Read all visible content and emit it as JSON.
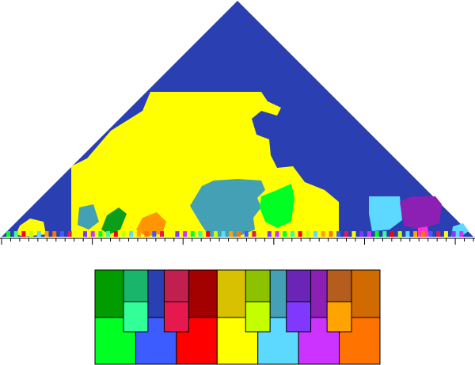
{
  "keyscape": {
    "background_color": "#2a3fb2",
    "tonic_color": "#ffff00",
    "axis_tick_count": 52,
    "regions": [
      {
        "name": "yellow-region",
        "color": "#ffff00"
      },
      {
        "name": "teal-region",
        "color": "#44a0b4"
      },
      {
        "name": "green-region",
        "color": "#00ff22"
      },
      {
        "name": "cyan-region",
        "color": "#5dd8ff"
      },
      {
        "name": "purple-region",
        "color": "#8c1fb4"
      },
      {
        "name": "orange-region",
        "color": "#ff9500"
      },
      {
        "name": "darkgreen-region",
        "color": "#0a9e1a"
      },
      {
        "name": "magenta-region",
        "color": "#ff33cc"
      }
    ]
  },
  "legend": {
    "upper_white": [
      "#009c00",
      "#2a3fb2",
      "#a30000",
      "#d8c100",
      "#44a0b4",
      "#8c1fb4",
      "#d16a00"
    ],
    "upper_black": [
      "#18b56b",
      "#c11f4f",
      "#8cc200",
      "#6a25b6",
      "#b45d1e"
    ],
    "lower_white": [
      "#00ff22",
      "#3c5cff",
      "#ff0000",
      "#ffff00",
      "#5dd8ff",
      "#cc33ff",
      "#ff7300"
    ],
    "lower_black": [
      "#33ff99",
      "#e6194f",
      "#c4ff00",
      "#8038ff",
      "#ffa300"
    ]
  }
}
